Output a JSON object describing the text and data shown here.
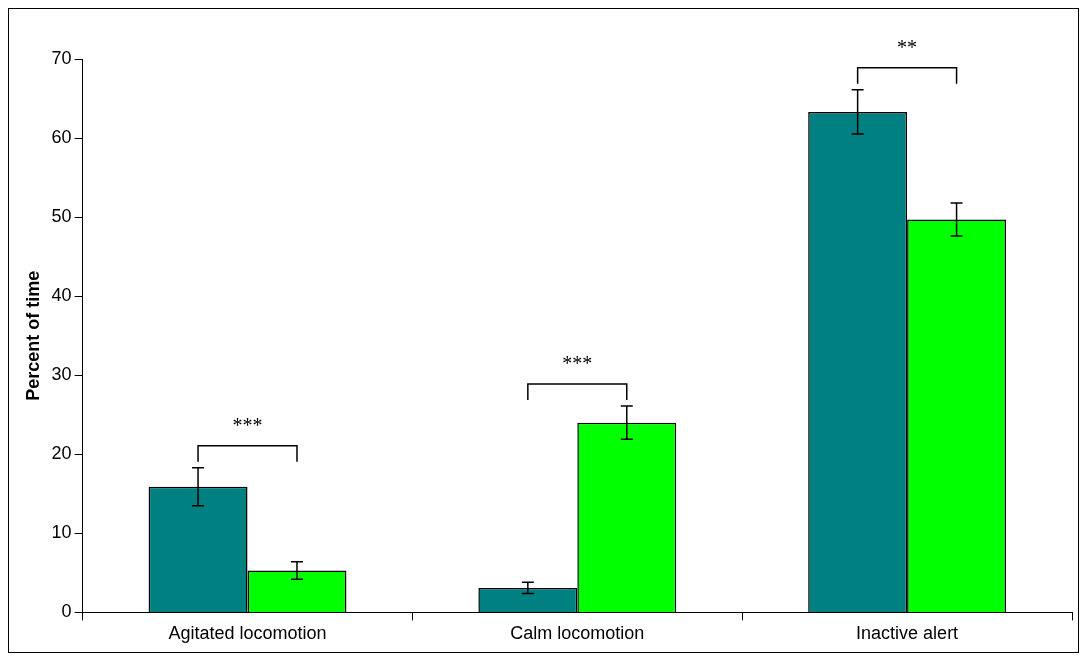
{
  "chart_data": {
    "type": "bar",
    "ylabel": "Percent of time",
    "categories": [
      "Agitated locomotion",
      "Calm locomotion",
      "Inactive alert"
    ],
    "series": [
      {
        "color": "#008080",
        "values": [
          15.9,
          3.1,
          63.3
        ],
        "errors": [
          2.4,
          0.7,
          2.8
        ]
      },
      {
        "color": "#00ff00",
        "values": [
          5.3,
          24.0,
          49.7
        ],
        "errors": [
          1.1,
          2.1,
          2.1
        ]
      }
    ],
    "ylim": [
      0,
      70
    ],
    "yticks": [
      0,
      10,
      20,
      30,
      40,
      50,
      60,
      70
    ],
    "grid": false,
    "legend": false,
    "annotations": [
      "***",
      "***",
      "**"
    ]
  }
}
